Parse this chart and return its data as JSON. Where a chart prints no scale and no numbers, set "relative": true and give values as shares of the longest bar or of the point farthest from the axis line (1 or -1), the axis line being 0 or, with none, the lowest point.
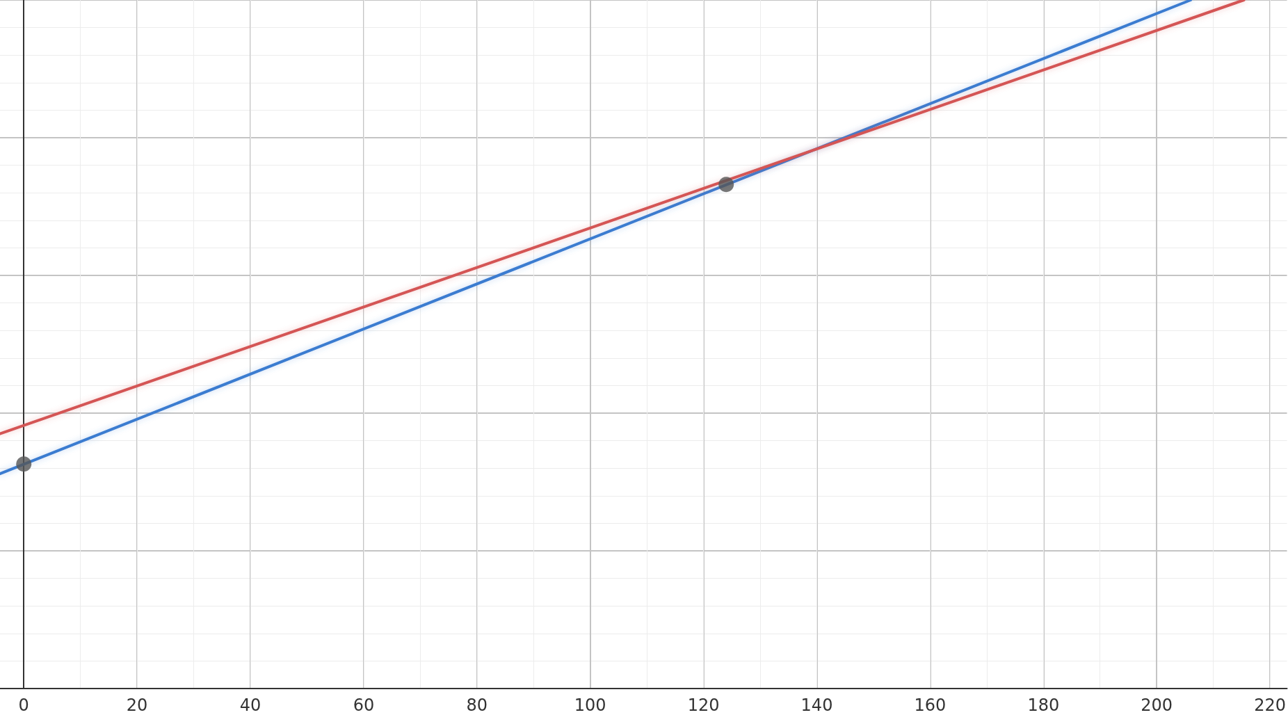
{
  "chart_data": {
    "type": "line",
    "relative": true,
    "xlim": [
      -4.2,
      223
    ],
    "xticks": [
      0,
      20,
      40,
      60,
      80,
      100,
      120,
      140,
      160,
      180,
      200,
      220
    ],
    "grid": true,
    "series": [
      {
        "color": "#3a7bd0",
        "x": [
          -4.2,
          206
        ],
        "values": [
          0.312,
          1.0
        ],
        "marker": "none",
        "line_style": "solid"
      },
      {
        "color": "#d45454",
        "x": [
          -4.2,
          215.4
        ],
        "values": [
          0.37,
          1.0
        ],
        "marker": "none",
        "line_style": "solid"
      },
      {
        "type": "scatter",
        "color": "#555555",
        "x": [
          0,
          124
        ],
        "values": [
          0.326,
          0.732
        ],
        "marker": "circle"
      }
    ]
  }
}
